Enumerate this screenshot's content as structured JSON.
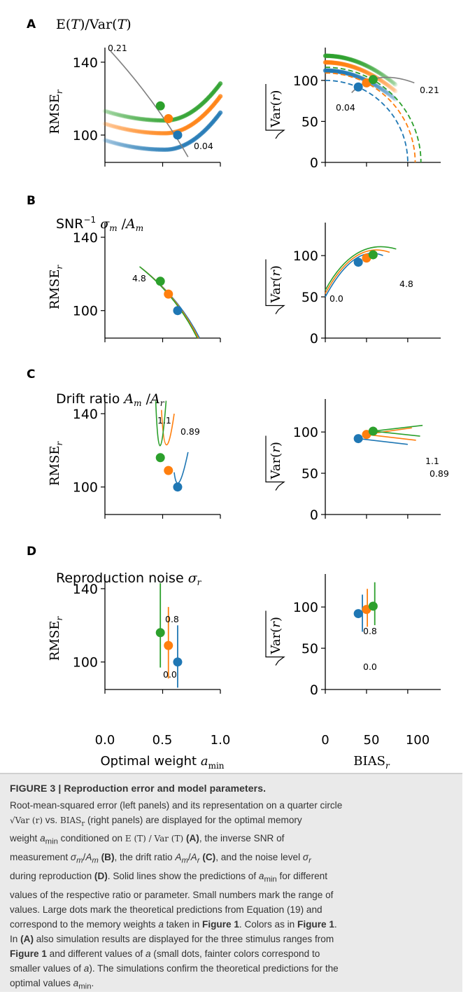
{
  "colors": {
    "blue": "#1f77b4",
    "orange": "#ff7f0e",
    "green": "#2ca02c",
    "gray": "#808080",
    "caption_bg": "#eaeaea"
  },
  "panels": [
    {
      "letter": "A",
      "title": "E(T)/Var(T)",
      "kind": "ratio_ET"
    },
    {
      "letter": "B",
      "title": "SNR⁻¹ σm/Am",
      "kind": "snr"
    },
    {
      "letter": "C",
      "title": "Drift ratio Am/Ar",
      "kind": "drift"
    },
    {
      "letter": "D",
      "title": "Reproduction noise σr",
      "kind": "noise"
    }
  ],
  "axes": {
    "left_ylabel": "RMSEr",
    "right_ylabel": "√Var(r)",
    "left_xlabel": "Optimal weight amin",
    "right_xlabel": "BIASr",
    "left_yticks": [
      "100",
      "140"
    ],
    "right_yticks": [
      "0",
      "50",
      "100"
    ],
    "left_xticks": [
      "0.0",
      "0.5",
      "1.0"
    ],
    "right_xticks": [
      "0",
      "50",
      "100"
    ]
  },
  "annotations": {
    "A_left_top": "0.21",
    "A_left_bottom": "0.04",
    "A_right_top": "0.21",
    "A_right_bottom": "0.04",
    "B_left": "4.8",
    "B_right_end": "4.8",
    "B_right_start": "0.0",
    "C_left_a": "1.1",
    "C_left_b": "0.89",
    "C_right_a": "1.1",
    "C_right_b": "0.89",
    "D_left_top": "0.8",
    "D_left_bottom": "0.0",
    "D_right_top": "0.8",
    "D_right_bottom": "0.0"
  },
  "chart_data": [
    {
      "type": "scatter",
      "panel": "A-left",
      "ylabel": "RMSEr",
      "ylim": [
        85,
        148
      ],
      "xlim": [
        0,
        1
      ],
      "series": [
        {
          "color": "blue",
          "x": [
            0.63
          ],
          "y": [
            100
          ]
        },
        {
          "color": "orange",
          "x": [
            0.55
          ],
          "y": [
            109
          ]
        },
        {
          "color": "green",
          "x": [
            0.48
          ],
          "y": [
            116
          ]
        }
      ]
    },
    {
      "type": "scatter",
      "panel": "A-right",
      "ylabel": "√Var(r)",
      "ylim": [
        0,
        140
      ],
      "xlim": [
        0,
        140
      ],
      "series": [
        {
          "color": "blue",
          "x": [
            40
          ],
          "y": [
            92
          ]
        },
        {
          "color": "orange",
          "x": [
            50
          ],
          "y": [
            97
          ]
        },
        {
          "color": "green",
          "x": [
            58
          ],
          "y": [
            101
          ]
        }
      ]
    },
    {
      "type": "line",
      "panel": "B-left",
      "ylim": [
        85,
        148
      ],
      "series": [
        {
          "color": "blue",
          "x": [
            0.63
          ],
          "y": [
            100
          ]
        },
        {
          "color": "orange",
          "x": [
            0.55
          ],
          "y": [
            109
          ]
        },
        {
          "color": "green",
          "x": [
            0.48
          ],
          "y": [
            116
          ]
        }
      ]
    },
    {
      "type": "line",
      "panel": "B-right",
      "ylim": [
        0,
        140
      ],
      "series": [
        {
          "color": "blue",
          "x": [
            40
          ],
          "y": [
            92
          ]
        },
        {
          "color": "orange",
          "x": [
            50
          ],
          "y": [
            97
          ]
        },
        {
          "color": "green",
          "x": [
            58
          ],
          "y": [
            101
          ]
        }
      ]
    },
    {
      "type": "line",
      "panel": "C-left",
      "ylim": [
        85,
        148
      ],
      "series": [
        {
          "color": "blue",
          "x": [
            0.63
          ],
          "y": [
            100
          ]
        },
        {
          "color": "orange",
          "x": [
            0.55
          ],
          "y": [
            109
          ]
        },
        {
          "color": "green",
          "x": [
            0.48
          ],
          "y": [
            116
          ]
        }
      ]
    },
    {
      "type": "line",
      "panel": "C-right",
      "ylim": [
        0,
        140
      ],
      "series": [
        {
          "color": "blue",
          "x": [
            40
          ],
          "y": [
            92
          ]
        },
        {
          "color": "orange",
          "x": [
            50
          ],
          "y": [
            97
          ]
        },
        {
          "color": "green",
          "x": [
            58
          ],
          "y": [
            101
          ]
        }
      ]
    },
    {
      "type": "scatter",
      "panel": "D-left",
      "xlabel": "Optimal weight amin",
      "ylim": [
        85,
        148
      ],
      "xlim": [
        0,
        1
      ],
      "series": [
        {
          "color": "blue",
          "x": [
            0.63
          ],
          "y": [
            100
          ]
        },
        {
          "color": "orange",
          "x": [
            0.55
          ],
          "y": [
            109
          ]
        },
        {
          "color": "green",
          "x": [
            0.48
          ],
          "y": [
            116
          ]
        }
      ]
    },
    {
      "type": "scatter",
      "panel": "D-right",
      "xlabel": "BIASr",
      "ylim": [
        0,
        140
      ],
      "xlim": [
        0,
        140
      ],
      "series": [
        {
          "color": "blue",
          "x": [
            40
          ],
          "y": [
            92
          ]
        },
        {
          "color": "orange",
          "x": [
            50
          ],
          "y": [
            97
          ]
        },
        {
          "color": "green",
          "x": [
            58
          ],
          "y": [
            101
          ]
        }
      ]
    }
  ],
  "caption": {
    "title": "FIGURE 3 | Reproduction error and model parameters.",
    "p1": "Root-mean-squared error (left panels) and its representation on a quarter circle",
    "p2": "√Var(r) vs. BIASr (right panels) are displayed for the optimal memory",
    "p3": "weight amin conditioned on E(T) / Var(T) (A), the inverse SNR of",
    "p4": "measurement σm/Am (B), the drift ratio Am/Ar (C), and the noise level σr",
    "p5": "during reproduction (D). Solid lines show the predictions of amin for different",
    "p6": "values of the respective ratio or parameter. Small numbers mark the range of",
    "p7": "values. Large dots mark the theoretical predictions from Equation (19) and",
    "p8": "correspond to the memory weights a taken in Figure 1. Colors as in Figure 1.",
    "p9": "In (A) also simulation results are displayed for the three stimulus ranges from",
    "p10": "Figure 1 and different values of a (small dots, fainter colors correspond to",
    "p11": "smaller values of a). The simulations confirm the theoretical predictions for the",
    "p12": "optimal values amin."
  }
}
